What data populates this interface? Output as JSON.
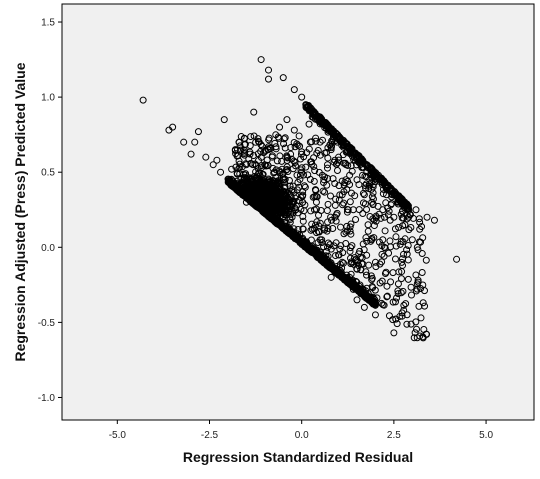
{
  "chart_data": {
    "type": "scatter",
    "title": "",
    "xlabel": "Regression Standardized Residual",
    "ylabel": "Regression Adjusted (Press) Predicted Value",
    "xlim": [
      -6.5,
      6.3
    ],
    "ylim": [
      -1.15,
      1.62
    ],
    "x_ticks": [
      -5.0,
      -2.5,
      0.0,
      2.5,
      5.0
    ],
    "x_tick_labels": [
      "-5.0",
      "-2.5",
      "0.0",
      "2.5",
      "5.0"
    ],
    "y_ticks": [
      -1.0,
      -0.5,
      0.0,
      0.5,
      1.0,
      1.5
    ],
    "y_tick_labels": [
      "-1.0",
      "-0.5",
      "0.0",
      "0.5",
      "1.0",
      "1.5"
    ],
    "grid": false,
    "marker": "open-circle",
    "background_color": "#f0f0f0",
    "point_color": "#000000",
    "points": [
      [
        -4.3,
        0.98
      ],
      [
        -3.5,
        0.8
      ],
      [
        -3.2,
        0.7
      ],
      [
        -3.0,
        0.62
      ],
      [
        -2.8,
        0.77
      ],
      [
        -2.6,
        0.6
      ],
      [
        -2.4,
        0.55
      ],
      [
        -2.2,
        0.5
      ],
      [
        -2.1,
        0.85
      ],
      [
        -1.9,
        0.52
      ],
      [
        -1.7,
        0.7
      ],
      [
        -1.5,
        0.55
      ],
      [
        -1.3,
        0.9
      ],
      [
        -1.1,
        1.25
      ],
      [
        -0.9,
        1.18
      ],
      [
        -0.9,
        1.12
      ],
      [
        -0.5,
        1.13
      ],
      [
        -0.2,
        1.05
      ],
      [
        0.0,
        1.0
      ],
      [
        -0.6,
        0.8
      ],
      [
        -0.4,
        0.85
      ],
      [
        -0.2,
        0.78
      ],
      [
        0.2,
        0.82
      ],
      [
        0.5,
        0.7
      ],
      [
        0.3,
        0.9
      ],
      [
        0.8,
        0.65
      ],
      [
        1.0,
        0.6
      ],
      [
        1.2,
        0.55
      ],
      [
        1.5,
        0.45
      ],
      [
        1.7,
        0.35
      ],
      [
        1.9,
        0.3
      ],
      [
        2.2,
        0.25
      ],
      [
        2.5,
        0.2
      ],
      [
        2.7,
        0.22
      ],
      [
        2.9,
        0.2
      ],
      [
        3.1,
        0.25
      ],
      [
        3.4,
        0.2
      ],
      [
        3.6,
        0.18
      ],
      [
        3.0,
        0.05
      ],
      [
        2.8,
        0.15
      ],
      [
        2.4,
        0.18
      ],
      [
        2.0,
        -0.1
      ],
      [
        1.6,
        -0.15
      ],
      [
        1.3,
        -0.2
      ],
      [
        1.0,
        -0.05
      ],
      [
        0.7,
        0.0
      ],
      [
        0.5,
        0.05
      ],
      [
        2.0,
        -0.45
      ],
      [
        2.5,
        -0.57
      ],
      [
        1.5,
        -0.35
      ],
      [
        1.7,
        -0.4
      ],
      [
        4.2,
        -0.08
      ],
      [
        -0.8,
        0.6
      ],
      [
        -1.0,
        0.55
      ],
      [
        -0.3,
        0.62
      ],
      [
        0.1,
        0.4
      ],
      [
        0.4,
        0.3
      ],
      [
        0.9,
        0.2
      ],
      [
        1.2,
        0.1
      ],
      [
        1.4,
        0.25
      ],
      [
        1.8,
        0.15
      ],
      [
        2.2,
        0.05
      ],
      [
        2.3,
        0.35
      ],
      [
        0.6,
        0.45
      ],
      [
        1.1,
        0.35
      ],
      [
        -0.5,
        0.45
      ],
      [
        -0.7,
        0.4
      ],
      [
        -1.2,
        0.45
      ],
      [
        -1.5,
        0.3
      ],
      [
        0.0,
        0.5
      ],
      [
        -1.8,
        0.65
      ],
      [
        -2.3,
        0.58
      ],
      [
        -1.4,
        0.62
      ],
      [
        -0.1,
        0.68
      ],
      [
        0.7,
        0.55
      ],
      [
        1.3,
        0.48
      ],
      [
        2.6,
        0.3
      ],
      [
        3.2,
        0.12
      ],
      [
        1.9,
        0.05
      ],
      [
        1.1,
        -0.1
      ],
      [
        0.8,
        -0.2
      ],
      [
        1.4,
        -0.28
      ],
      [
        2.1,
        0.22
      ],
      [
        -3.6,
        0.78
      ],
      [
        -2.9,
        0.7
      ]
    ]
  }
}
